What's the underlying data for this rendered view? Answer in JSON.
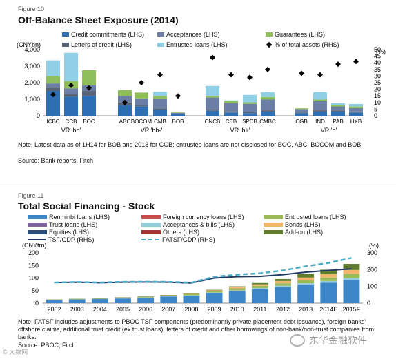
{
  "fig10": {
    "label": "Figure 10",
    "title": "Off-Balance Sheet Exposure (2014)",
    "unit_left": "(CNYbn)",
    "unit_right": "(%)",
    "legend": [
      {
        "name": "Credit commitments (LHS)",
        "color": "#2e6fb4"
      },
      {
        "name": "Acceptances (LHS)",
        "color": "#6b7ea6"
      },
      {
        "name": "Guarantees (LHS)",
        "color": "#8fbf5a"
      },
      {
        "name": "Letters of credit (LHS)",
        "color": "#5a6678"
      },
      {
        "name": "Entrusted loans (LHS)",
        "color": "#8fd0e6"
      },
      {
        "name": "% of total assets (RHS)",
        "color": "#000000"
      }
    ],
    "note": "Note: Latest data as of 1H14 for BOB and 2013 for CGB; entrusted loans are not disclosed for BOC, ABC, BOCOM and BOB",
    "source": "Source: Bank reports, Fitch"
  },
  "fig11": {
    "label": "Figure 11",
    "title": "Total Social Financing - Stock",
    "unit_left": "(CNYtrn)",
    "unit_right": "(%)",
    "legend": [
      {
        "name": "Renminbi loans (LHS)",
        "color": "#3d87c8",
        "kind": "bar"
      },
      {
        "name": "Foreign currency loans (LHS)",
        "color": "#c0504d",
        "kind": "bar"
      },
      {
        "name": "Entrusted loans (LHS)",
        "color": "#9bbb59",
        "kind": "bar"
      },
      {
        "name": "Trust loans (LHS)",
        "color": "#8064a2",
        "kind": "bar"
      },
      {
        "name": "Acceptances & bills (LHS)",
        "color": "#93cddd",
        "kind": "bar"
      },
      {
        "name": "Bonds (LHS)",
        "color": "#f2b56b",
        "kind": "bar"
      },
      {
        "name": "Equities (LHS)",
        "color": "#2c4f7c",
        "kind": "bar"
      },
      {
        "name": "Others (LHS)",
        "color": "#a83232",
        "kind": "bar"
      },
      {
        "name": "Add-on (LHS)",
        "color": "#5f7d2a",
        "kind": "bar"
      },
      {
        "name": "TSF/GDP (RHS)",
        "color": "#203864",
        "kind": "line"
      },
      {
        "name": "FATSF/GDP (RHS)",
        "color": "#4bacc6",
        "kind": "dash"
      }
    ],
    "note": "Note: FATSF includes adjustments to PBOC TSF components (predominantly private placement debt issuance), foreign banks' offshore claims, additional trust credit (ex trust loans), letters of credit and other borrowings of non-bank/non-trust companies from banks.",
    "source": "Source: PBOC, Fitch"
  },
  "watermark_left": "© 大数网",
  "watermark_right": "东华金融软件",
  "chart_data": [
    {
      "type": "bar",
      "stacked": true,
      "title": "Off-Balance Sheet Exposure (2014)",
      "ylabel": "(CNYbn)",
      "ylabel_right": "(%)",
      "ylim": [
        0,
        4000
      ],
      "ylim_right": [
        0,
        50
      ],
      "yticks": [
        "0",
        "1,000",
        "2,000",
        "3,000",
        "4,000"
      ],
      "yticks_right": [
        "0",
        "5",
        "10",
        "15",
        "20",
        "25",
        "30",
        "35",
        "40",
        "45",
        "50"
      ],
      "categories": [
        "ICBC",
        "CCB",
        "BOC",
        "ABC",
        "BOCOM",
        "CMB",
        "BOB",
        "CNCB",
        "CEB",
        "SPDB",
        "CMBC",
        "CGB",
        "IND",
        "PAB",
        "HXB"
      ],
      "groups": [
        {
          "label": "VR 'bb'",
          "members": [
            "ICBC",
            "CCB",
            "BOC"
          ]
        },
        {
          "label": "VR 'bb-'",
          "members": [
            "ABC",
            "BOCOM",
            "CMB",
            "BOB"
          ]
        },
        {
          "label": "VR 'b+'",
          "members": [
            "CNCB",
            "CEB",
            "SPDB",
            "CMBC"
          ]
        },
        {
          "label": "VR 'b'",
          "members": [
            "CGB",
            "IND",
            "PAB",
            "HXB"
          ]
        }
      ],
      "series": [
        {
          "name": "Credit commitments (LHS)",
          "values": [
            1500,
            1150,
            1200,
            650,
            550,
            350,
            100,
            300,
            200,
            150,
            250,
            150,
            250,
            250,
            200
          ]
        },
        {
          "name": "Letters of credit (LHS)",
          "values": [
            200,
            150,
            300,
            150,
            100,
            100,
            20,
            100,
            80,
            60,
            80,
            50,
            80,
            60,
            60
          ]
        },
        {
          "name": "Acceptances (LHS)",
          "values": [
            250,
            350,
            350,
            400,
            400,
            550,
            50,
            700,
            500,
            500,
            650,
            200,
            550,
            250,
            200
          ]
        },
        {
          "name": "Guarantees (LHS)",
          "values": [
            450,
            450,
            900,
            350,
            350,
            200,
            30,
            100,
            100,
            100,
            150,
            50,
            100,
            100,
            100
          ]
        },
        {
          "name": "Entrusted loans (LHS)",
          "values": [
            950,
            1700,
            0,
            0,
            0,
            250,
            0,
            600,
            50,
            450,
            300,
            0,
            450,
            100,
            150
          ]
        }
      ],
      "line_series": {
        "name": "% of total assets (RHS)",
        "values": [
          16,
          23,
          21,
          10,
          25,
          31,
          15,
          44,
          31,
          29,
          35,
          32,
          31,
          39,
          41
        ]
      }
    },
    {
      "type": "bar",
      "stacked": true,
      "title": "Total Social Financing - Stock",
      "ylabel": "(CNYtrn)",
      "ylabel_right": "(%)",
      "ylim": [
        0,
        200
      ],
      "ylim_right": [
        0,
        300
      ],
      "yticks": [
        "0",
        "50",
        "100",
        "150",
        "200"
      ],
      "yticks_right": [
        "0",
        "100",
        "200",
        "300"
      ],
      "categories": [
        "2002",
        "2003",
        "2004",
        "2005",
        "2006",
        "2007",
        "2008",
        "2009",
        "2010",
        "2011",
        "2012",
        "2013",
        "2014E",
        "2015F"
      ],
      "series": [
        {
          "name": "Renminbi loans (LHS)",
          "values": [
            13,
            15,
            17,
            19,
            22,
            26,
            30,
            40,
            47,
            55,
            63,
            72,
            81,
            92
          ]
        },
        {
          "name": "Acceptances & bills (LHS)",
          "values": [
            0.3,
            0.5,
            0.5,
            0.6,
            1,
            1.5,
            1.5,
            2,
            4,
            5,
            6,
            7,
            7,
            8
          ]
        },
        {
          "name": "Entrusted loans (LHS)",
          "values": [
            0.5,
            1,
            1.5,
            2,
            2,
            3,
            4,
            5,
            8,
            9,
            10,
            12,
            14,
            17
          ]
        },
        {
          "name": "Bonds (LHS)",
          "values": [
            0.5,
            0.5,
            0.6,
            1,
            1.2,
            1.5,
            2,
            4,
            5,
            6,
            9,
            11,
            13,
            15
          ]
        },
        {
          "name": "Add-on (LHS)",
          "values": [
            0.2,
            0.3,
            0.3,
            0.5,
            0.5,
            0.8,
            1,
            2,
            3,
            5,
            8,
            14,
            18,
            24
          ]
        }
      ],
      "line_series": [
        {
          "name": "TSF/GDP (RHS)",
          "values": [
            123,
            125,
            122,
            125,
            126,
            125,
            120,
            150,
            158,
            160,
            170,
            185,
            195,
            205
          ]
        },
        {
          "name": "FATSF/GDP (RHS)",
          "values": [
            123,
            126,
            123,
            127,
            128,
            127,
            122,
            158,
            170,
            178,
            195,
            220,
            240,
            270
          ]
        }
      ]
    }
  ]
}
